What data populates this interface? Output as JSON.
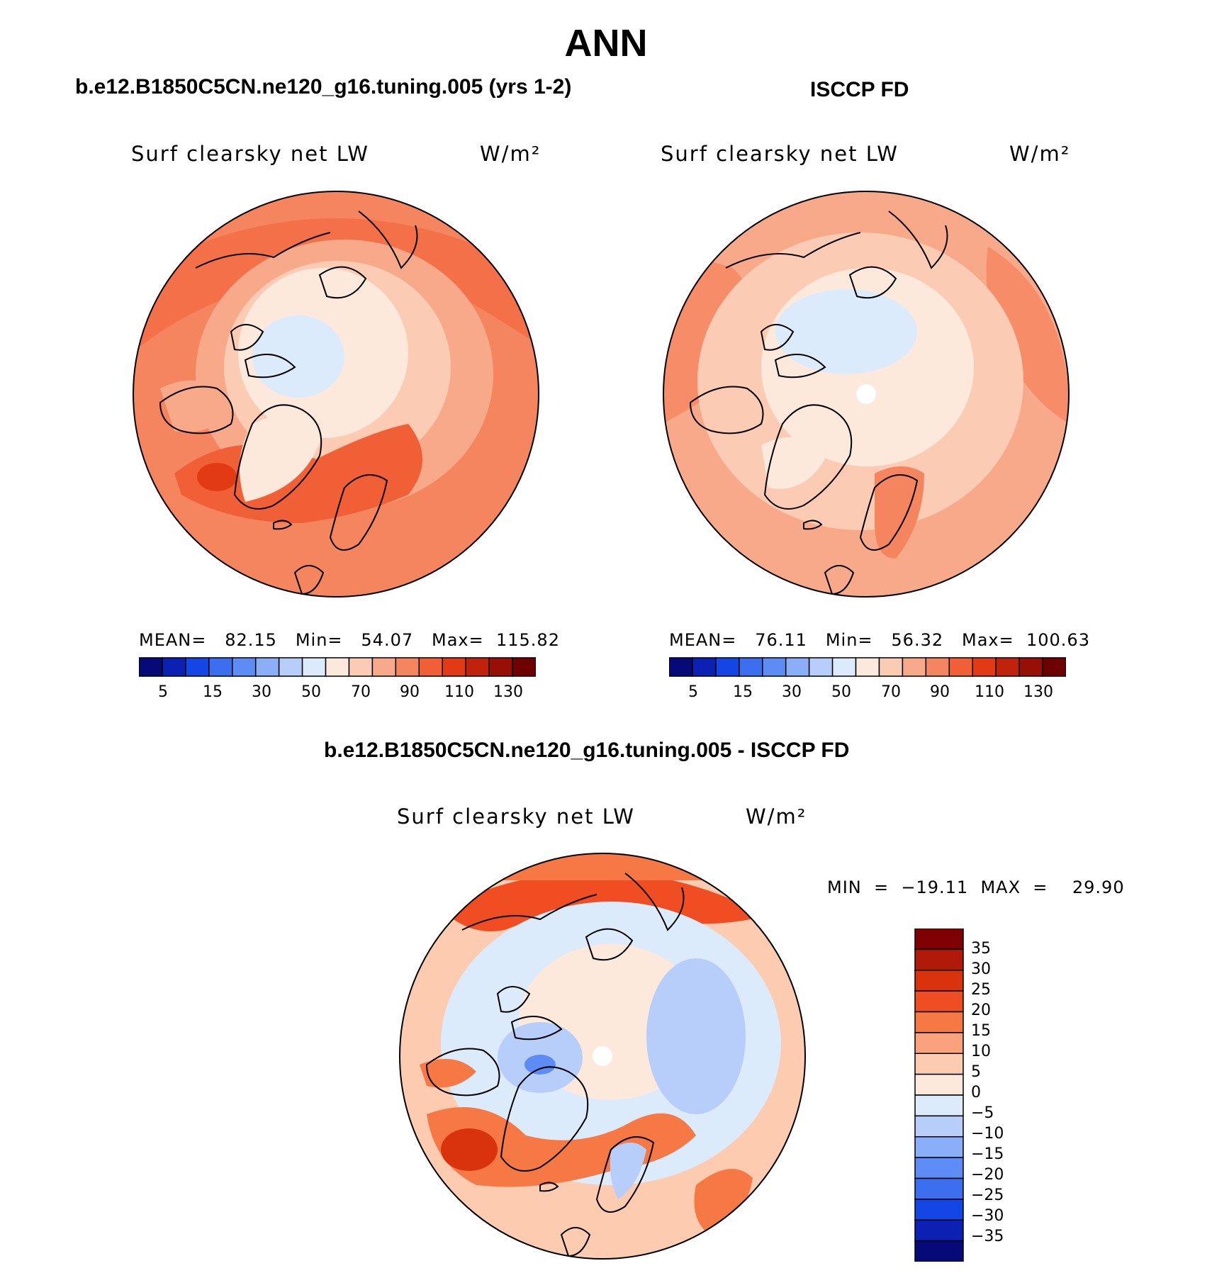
{
  "title": "ANN",
  "panels": {
    "model": {
      "title": "b.e12.B1850C5CN.ne120_g16.tuning.005 (yrs 1-2)",
      "variable": "Surf clearsky net LW",
      "units": "W/m²",
      "stats": "MEAN=   82.15   Min=   54.07   Max=  115.82"
    },
    "obs": {
      "title": "ISCCP FD",
      "variable": "Surf clearsky net LW",
      "units": "W/m²",
      "stats": "MEAN=   76.11   Min=   56.32   Max=  100.63"
    },
    "diff": {
      "title": "b.e12.B1850C5CN.ne120_g16.tuning.005 - ISCCP FD",
      "variable": "Surf clearsky net LW",
      "units": "W/m²",
      "stats": "MIN  =  −19.11  MAX  =    29.90"
    }
  },
  "colorbar_abs": {
    "labels": [
      "5",
      "15",
      "30",
      "50",
      "70",
      "90",
      "110",
      "130"
    ],
    "colors": [
      "#050a78",
      "#0a21b4",
      "#1446e6",
      "#3c6ef0",
      "#5e8cf5",
      "#8aaef8",
      "#b7cdfa",
      "#dcebfc",
      "#fde9dc",
      "#fbcbb3",
      "#f8a98a",
      "#f5855f",
      "#f05f36",
      "#e23a14",
      "#c0220a",
      "#981005",
      "#6e0000"
    ]
  },
  "colorbar_diff": {
    "labels": [
      "35",
      "30",
      "25",
      "20",
      "15",
      "10",
      "5",
      "0",
      "−5",
      "−10",
      "−15",
      "−20",
      "−25",
      "−30",
      "−35"
    ],
    "colors": [
      "#7e0000",
      "#b01a08",
      "#d9330e",
      "#f04e22",
      "#f57845",
      "#f9a27c",
      "#fccbb0",
      "#fde9dc",
      "#dcebfc",
      "#b7cdfa",
      "#8aaef8",
      "#5e8cf5",
      "#3c6ef0",
      "#1446e6",
      "#0a21b4",
      "#050a78"
    ]
  }
}
